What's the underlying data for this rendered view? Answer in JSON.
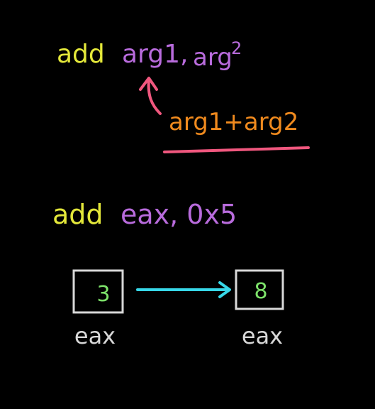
{
  "colors": {
    "background": "#000000",
    "mnemonic": "#e4e83a",
    "operand": "#b86bdc",
    "result": "#f08a1e",
    "arrow_up": "#f0577e",
    "underline": "#f0577e",
    "flow_arrow": "#37d7e8",
    "box": "#d8d8d8",
    "register_value": "#7de26a",
    "register_label": "#d8d8d8"
  },
  "generic": {
    "mnemonic": "add",
    "arg1": "arg1,",
    "arg2": "arg",
    "arg2_superscript": "2",
    "result_expression": "arg1+arg2"
  },
  "example": {
    "mnemonic": "add",
    "operands": "eax, 0x5"
  },
  "registers": {
    "before": {
      "value": "3",
      "label": "eax"
    },
    "after": {
      "value": "8",
      "label": "eax"
    }
  },
  "icons": {
    "up_arrow": "curved-up-arrow-icon",
    "right_arrow": "right-arrow-icon"
  }
}
